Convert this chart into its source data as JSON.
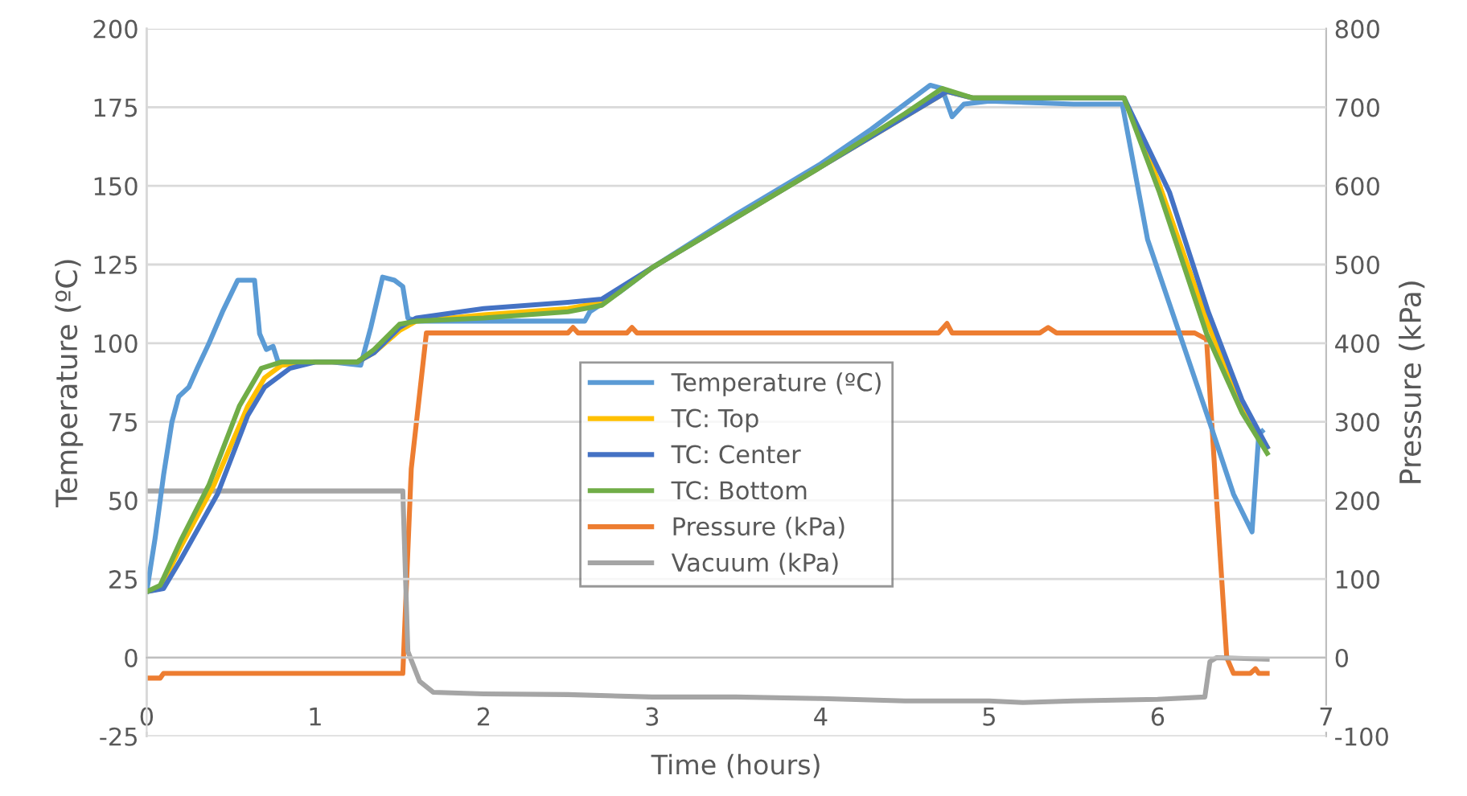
{
  "chart_data": {
    "type": "line",
    "xlabel": "Time (hours)",
    "ylabel": "Temperature (ºC)",
    "y2label": "Pressure (kPa)",
    "xlim": [
      0,
      7
    ],
    "xticks": [
      0,
      1,
      2,
      3,
      4,
      5,
      6,
      7
    ],
    "ylim": [
      -25,
      200
    ],
    "yticks": [
      -25,
      0,
      25,
      50,
      75,
      100,
      125,
      150,
      175,
      200
    ],
    "y2lim": [
      -100,
      800
    ],
    "y2ticks": [
      -100,
      0,
      100,
      200,
      300,
      400,
      500,
      600,
      700,
      800
    ],
    "grid": "y",
    "legend": "center",
    "marker": "none",
    "line_style": "solid",
    "series": [
      {
        "name": "Temperature (ºC)",
        "color": "#5b9bd5",
        "x": [
          0,
          0.05,
          0.1,
          0.15,
          0.19,
          0.25,
          0.3,
          0.37,
          0.45,
          0.54,
          0.64,
          0.67,
          0.71,
          0.75,
          0.78,
          0.9,
          1.1,
          1.27,
          1.33,
          1.4,
          1.47,
          1.52,
          1.55,
          1.6,
          2.0,
          2.6,
          2.63,
          2.8,
          3.0,
          3.5,
          4.0,
          4.3,
          4.65,
          4.72,
          4.78,
          4.85,
          5.0,
          5.5,
          5.79,
          5.94,
          6.13,
          6.32,
          6.45,
          6.56,
          6.6,
          6.62
        ],
        "values": [
          21,
          38,
          58,
          75,
          83,
          86,
          92,
          100,
          110,
          120,
          120,
          103,
          98,
          99,
          94,
          94,
          94,
          93,
          105,
          121,
          120,
          118,
          108,
          107,
          107,
          107,
          110,
          116,
          124,
          141,
          157,
          168,
          182,
          181,
          172,
          176,
          177,
          176,
          176,
          133,
          103,
          73,
          52,
          40,
          71,
          72
        ]
      },
      {
        "name": "TC: Top",
        "color": "#ffc000",
        "x": [
          0,
          0.08,
          0.2,
          0.4,
          0.6,
          0.7,
          0.8,
          1.0,
          1.25,
          1.35,
          1.5,
          1.6,
          2.0,
          2.5,
          2.7,
          3.0,
          3.5,
          4.0,
          4.5,
          4.75,
          4.9,
          5.8,
          6.0,
          6.3,
          6.5,
          6.65
        ],
        "values": [
          21,
          22,
          35,
          55,
          80,
          89,
          93,
          94,
          94,
          97,
          104,
          107,
          109,
          111,
          113,
          124,
          140,
          156,
          172,
          180,
          178,
          178,
          152,
          106,
          80,
          67
        ]
      },
      {
        "name": "TC: Center",
        "color": "#4472c4",
        "x": [
          0,
          0.1,
          0.2,
          0.42,
          0.6,
          0.7,
          0.85,
          1.0,
          1.25,
          1.35,
          1.5,
          1.6,
          2.0,
          2.5,
          2.7,
          3.0,
          3.5,
          4.0,
          4.5,
          4.75,
          4.9,
          5.8,
          6.07,
          6.3,
          6.5,
          6.65
        ],
        "values": [
          21,
          22,
          31,
          52,
          77,
          86,
          92,
          94,
          94,
          97,
          105,
          108,
          111,
          113,
          114,
          124,
          140,
          156,
          172,
          180,
          178,
          178,
          148,
          110,
          82,
          67
        ]
      },
      {
        "name": "TC: Bottom",
        "color": "#70ad47",
        "x": [
          0,
          0.08,
          0.2,
          0.37,
          0.55,
          0.68,
          0.8,
          1.25,
          1.35,
          1.5,
          1.6,
          2.0,
          2.5,
          2.7,
          3.0,
          3.5,
          4.0,
          4.5,
          4.72,
          4.9,
          5.8,
          6.01,
          6.29,
          6.5,
          6.65
        ],
        "values": [
          21,
          23,
          37,
          55,
          80,
          92,
          94,
          94,
          98,
          106,
          107,
          108,
          110,
          112,
          124,
          140,
          156,
          173,
          181,
          178,
          178,
          148,
          103,
          78,
          65
        ]
      },
      {
        "name": "Pressure (kPa)",
        "color": "#ed7d31",
        "axis": "y2",
        "x": [
          0,
          0.08,
          0.1,
          1.52,
          1.57,
          1.66,
          2.5,
          2.53,
          2.56,
          2.85,
          2.88,
          2.91,
          4.0,
          4.7,
          4.75,
          4.78,
          5.3,
          5.35,
          5.4,
          6.22,
          6.29,
          6.35,
          6.41,
          6.45,
          6.55,
          6.58,
          6.6,
          6.65
        ],
        "values": [
          -26,
          -26,
          -20,
          -20,
          240,
          413,
          413,
          420,
          413,
          413,
          420,
          413,
          413,
          413,
          425,
          413,
          413,
          420,
          413,
          413,
          405,
          200,
          0,
          -20,
          -20,
          -14,
          -20,
          -20
        ]
      },
      {
        "name": "Vacuum (kPa)",
        "color": "#a5a5a5",
        "axis": "y2",
        "x": [
          0,
          1.0,
          1.52,
          1.55,
          1.62,
          1.7,
          2.0,
          2.5,
          3.0,
          3.5,
          4.0,
          4.5,
          5.0,
          5.2,
          5.5,
          6.0,
          6.28,
          6.31,
          6.35,
          6.65
        ],
        "values": [
          212,
          212,
          212,
          8,
          -30,
          -44,
          -46,
          -47,
          -50,
          -50,
          -52,
          -55,
          -55,
          -57,
          -55,
          -53,
          -50,
          -5,
          0,
          -2
        ]
      }
    ]
  }
}
